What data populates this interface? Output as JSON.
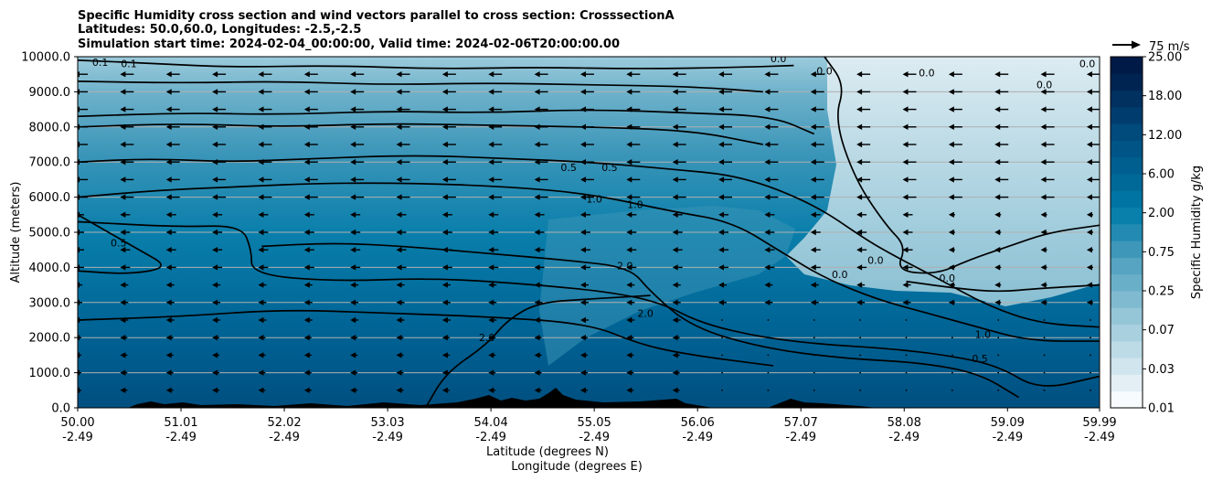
{
  "chart_data": {
    "type": "heatmap",
    "title_lines": [
      "Specific Humidity cross section and wind vectors parallel to cross section: CrosssectionA",
      "Latitudes: 50.0,60.0, Longitudes: -2.5,-2.5",
      "Simulation start time: 2024-02-04_00:00:00, Valid time: 2024-02-06T20:00:00.00"
    ],
    "ylabel": "Altitude (meters)",
    "xlabel_lines": [
      "Latitude (degrees N)",
      "Longitude (degrees E)"
    ],
    "ylim": [
      0,
      10000
    ],
    "xlim": [
      50.0,
      59.99
    ],
    "y_ticks": [
      {
        "value": 0,
        "label": "0.0"
      },
      {
        "value": 1000,
        "label": "1000.0"
      },
      {
        "value": 2000,
        "label": "2000.0"
      },
      {
        "value": 3000,
        "label": "3000.0"
      },
      {
        "value": 4000,
        "label": "4000.0"
      },
      {
        "value": 5000,
        "label": "5000.0"
      },
      {
        "value": 6000,
        "label": "6000.0"
      },
      {
        "value": 7000,
        "label": "7000.0"
      },
      {
        "value": 8000,
        "label": "8000.0"
      },
      {
        "value": 9000,
        "label": "9000.0"
      },
      {
        "value": 10000,
        "label": "10000.0"
      }
    ],
    "x_ticks": [
      {
        "lat": 50.0,
        "label1": "50.00",
        "label2": "-2.49"
      },
      {
        "lat": 51.01,
        "label1": "51.01",
        "label2": "-2.49"
      },
      {
        "lat": 52.02,
        "label1": "52.02",
        "label2": "-2.49"
      },
      {
        "lat": 53.03,
        "label1": "53.03",
        "label2": "-2.49"
      },
      {
        "lat": 54.04,
        "label1": "54.04",
        "label2": "-2.49"
      },
      {
        "lat": 55.05,
        "label1": "55.05",
        "label2": "-2.49"
      },
      {
        "lat": 56.06,
        "label1": "56.06",
        "label2": "-2.49"
      },
      {
        "lat": 57.07,
        "label1": "57.07",
        "label2": "-2.49"
      },
      {
        "lat": 58.08,
        "label1": "58.08",
        "label2": "-2.49"
      },
      {
        "lat": 59.09,
        "label1": "59.09",
        "label2": "-2.49"
      },
      {
        "lat": 59.99,
        "label1": "59.99",
        "label2": "-2.49"
      }
    ],
    "grid_y": true,
    "colorbar": {
      "label": "Specific Humidity g/kg",
      "tick_labels": [
        "0.01",
        "0.03",
        "0.07",
        "0.25",
        "0.75",
        "2.00",
        "6.00",
        "12.00",
        "18.00",
        "25.00"
      ],
      "colors": [
        "#f7fbfd",
        "#e3eff4",
        "#d0e5ee",
        "#bddbe6",
        "#a9d0df",
        "#95c6d7",
        "#80bad0",
        "#6aafc8",
        "#56a4c1",
        "#3e97b9",
        "#238bb3",
        "#0980ab",
        "#0074a2",
        "#006998",
        "#005f8f",
        "#005586",
        "#004a7c",
        "#003d6e",
        "#00315f",
        "#002452",
        "#001a47"
      ]
    },
    "quiver_key": {
      "label": "75 m/s"
    },
    "wind_rows_m": [
      500,
      1000,
      1500,
      2000,
      2500,
      3000,
      3500,
      4000,
      4500,
      5000,
      5500,
      6000,
      6500,
      7000,
      7500,
      8000,
      8500,
      9000,
      9500
    ],
    "wind_cols_lat": [
      50.0,
      50.45,
      50.9,
      51.35,
      51.8,
      52.25,
      52.7,
      53.15,
      53.6,
      54.05,
      54.5,
      54.95,
      55.4,
      55.85,
      56.3,
      56.75,
      57.2,
      57.65,
      58.1,
      58.55,
      59.0,
      59.45,
      59.9
    ],
    "contours": [
      {
        "level": "0.0",
        "points": [
          [
            57.3,
            10000
          ],
          [
            57.5,
            9200
          ],
          [
            57.4,
            8200
          ],
          [
            57.6,
            6500
          ],
          [
            57.9,
            5200
          ],
          [
            58.1,
            4600
          ],
          [
            58.0,
            3900
          ],
          [
            58.4,
            3800
          ],
          [
            58.7,
            4200
          ],
          [
            59.1,
            4600
          ],
          [
            59.5,
            5000
          ],
          [
            59.99,
            5200
          ]
        ]
      },
      {
        "level": "0.0",
        "points": [
          [
            58.1,
            3600
          ],
          [
            58.6,
            3400
          ],
          [
            59.0,
            3300
          ],
          [
            59.4,
            3400
          ],
          [
            59.99,
            3500
          ]
        ]
      },
      {
        "level": "0.1",
        "points": [
          [
            50.0,
            9900
          ],
          [
            50.8,
            9800
          ],
          [
            51.5,
            9700
          ],
          [
            52.5,
            9750
          ],
          [
            53.5,
            9650
          ],
          [
            54.5,
            9700
          ],
          [
            55.5,
            9650
          ],
          [
            56.5,
            9700
          ],
          [
            57.0,
            9750
          ]
        ]
      },
      {
        "level": "0.1",
        "points": [
          [
            50.0,
            9300
          ],
          [
            51.0,
            9250
          ],
          [
            52.0,
            9300
          ],
          [
            53.0,
            9200
          ],
          [
            54.0,
            9250
          ],
          [
            55.0,
            9200
          ],
          [
            56.0,
            9150
          ],
          [
            56.7,
            9000
          ]
        ]
      },
      {
        "level": "0.25",
        "points": [
          [
            50.0,
            8300
          ],
          [
            51.0,
            8400
          ],
          [
            52.0,
            8350
          ],
          [
            53.0,
            8450
          ],
          [
            54.0,
            8400
          ],
          [
            55.0,
            8500
          ],
          [
            56.0,
            8400
          ],
          [
            56.8,
            8300
          ],
          [
            57.2,
            7800
          ]
        ]
      },
      {
        "level": "0.25",
        "points": [
          [
            50.0,
            8000
          ],
          [
            51.0,
            8100
          ],
          [
            52.0,
            8000
          ],
          [
            53.0,
            8100
          ],
          [
            54.0,
            8050
          ],
          [
            55.0,
            8000
          ],
          [
            56.0,
            7900
          ],
          [
            56.7,
            7500
          ]
        ]
      },
      {
        "level": "0.5",
        "points": [
          [
            50.0,
            7000
          ],
          [
            50.7,
            7100
          ],
          [
            51.5,
            7000
          ],
          [
            52.3,
            7100
          ],
          [
            53.3,
            7200
          ],
          [
            54.2,
            7100
          ],
          [
            55.0,
            7000
          ],
          [
            55.8,
            6800
          ],
          [
            56.5,
            6600
          ],
          [
            57.2,
            5800
          ],
          [
            57.7,
            4800
          ],
          [
            58.0,
            4300
          ],
          [
            58.4,
            3700
          ],
          [
            58.9,
            2900
          ],
          [
            59.4,
            2400
          ],
          [
            59.99,
            2300
          ]
        ]
      },
      {
        "level": "1.0",
        "points": [
          [
            50.0,
            6000
          ],
          [
            50.8,
            6200
          ],
          [
            51.6,
            6300
          ],
          [
            52.4,
            6400
          ],
          [
            53.3,
            6400
          ],
          [
            54.2,
            6300
          ],
          [
            55.0,
            6100
          ],
          [
            55.8,
            5600
          ],
          [
            56.4,
            5300
          ],
          [
            56.9,
            4400
          ],
          [
            57.3,
            3700
          ],
          [
            57.8,
            3100
          ],
          [
            58.3,
            2700
          ],
          [
            58.8,
            2300
          ],
          [
            59.3,
            1900
          ],
          [
            59.99,
            1900
          ]
        ]
      },
      {
        "level": "0.5",
        "points": [
          [
            50.0,
            5500
          ],
          [
            50.3,
            5000
          ],
          [
            50.6,
            4500
          ],
          [
            50.9,
            4000
          ],
          [
            50.5,
            3800
          ],
          [
            50.0,
            3900
          ]
        ]
      },
      {
        "level": "1.0",
        "points": [
          [
            50.0,
            5300
          ],
          [
            51.0,
            5150
          ],
          [
            51.6,
            5200
          ],
          [
            51.7,
            4500
          ],
          [
            51.7,
            3800
          ],
          [
            52.5,
            3600
          ],
          [
            53.5,
            3700
          ],
          [
            54.5,
            3500
          ],
          [
            55.2,
            3300
          ],
          [
            55.7,
            3000
          ],
          [
            56.1,
            2400
          ],
          [
            56.7,
            2000
          ],
          [
            57.3,
            1800
          ],
          [
            57.9,
            1700
          ],
          [
            58.5,
            1500
          ],
          [
            59.0,
            1200
          ],
          [
            59.4,
            500
          ],
          [
            59.99,
            900
          ]
        ]
      },
      {
        "level": "2.0",
        "points": [
          [
            51.8,
            4600
          ],
          [
            52.5,
            4700
          ],
          [
            53.2,
            4600
          ],
          [
            54.0,
            4400
          ],
          [
            54.8,
            4200
          ],
          [
            55.4,
            4000
          ],
          [
            55.6,
            3300
          ],
          [
            56.0,
            2300
          ],
          [
            56.7,
            1700
          ],
          [
            57.5,
            1400
          ],
          [
            58.2,
            1300
          ],
          [
            58.8,
            1000
          ],
          [
            59.2,
            300
          ]
        ]
      },
      {
        "level": "2.0",
        "points": [
          [
            50.0,
            2500
          ],
          [
            51.0,
            2600
          ],
          [
            52.0,
            2800
          ],
          [
            53.0,
            2700
          ],
          [
            54.0,
            2600
          ],
          [
            55.0,
            2400
          ],
          [
            55.5,
            1800
          ],
          [
            56.0,
            1500
          ],
          [
            56.8,
            1200
          ]
        ]
      },
      {
        "level": "2.0",
        "points": [
          [
            53.4,
            0
          ],
          [
            53.6,
            1000
          ],
          [
            54.0,
            1800
          ],
          [
            54.2,
            2500
          ],
          [
            54.5,
            3000
          ],
          [
            55.0,
            3100
          ],
          [
            55.6,
            3200
          ]
        ]
      }
    ],
    "contour_labels": [
      {
        "text": "0.1",
        "lat": 50.22,
        "alt": 9850
      },
      {
        "text": "0.1",
        "lat": 50.5,
        "alt": 9800
      },
      {
        "text": "0.0",
        "lat": 56.85,
        "alt": 9950
      },
      {
        "text": "0.0",
        "lat": 57.3,
        "alt": 9600
      },
      {
        "text": "0.0",
        "lat": 58.3,
        "alt": 9550
      },
      {
        "text": "0.0",
        "lat": 59.45,
        "alt": 9200
      },
      {
        "text": "0.0",
        "lat": 59.87,
        "alt": 9800
      },
      {
        "text": "0.5",
        "lat": 54.8,
        "alt": 6850
      },
      {
        "text": "0.5",
        "lat": 55.2,
        "alt": 6850
      },
      {
        "text": "1.0",
        "lat": 55.05,
        "alt": 5950
      },
      {
        "text": "1.0",
        "lat": 55.45,
        "alt": 5800
      },
      {
        "text": "0.5",
        "lat": 50.4,
        "alt": 4700
      },
      {
        "text": "2.0",
        "lat": 55.35,
        "alt": 4050
      },
      {
        "text": "2.0",
        "lat": 55.55,
        "alt": 2700
      },
      {
        "text": "2.0",
        "lat": 54.0,
        "alt": 2000
      },
      {
        "text": "0.0",
        "lat": 57.45,
        "alt": 3800
      },
      {
        "text": "0.0",
        "lat": 57.8,
        "alt": 4200
      },
      {
        "text": "0.0",
        "lat": 58.5,
        "alt": 3700
      },
      {
        "text": "1.0",
        "lat": 58.85,
        "alt": 2100
      },
      {
        "text": "0.5",
        "lat": 58.82,
        "alt": 1400
      }
    ]
  }
}
